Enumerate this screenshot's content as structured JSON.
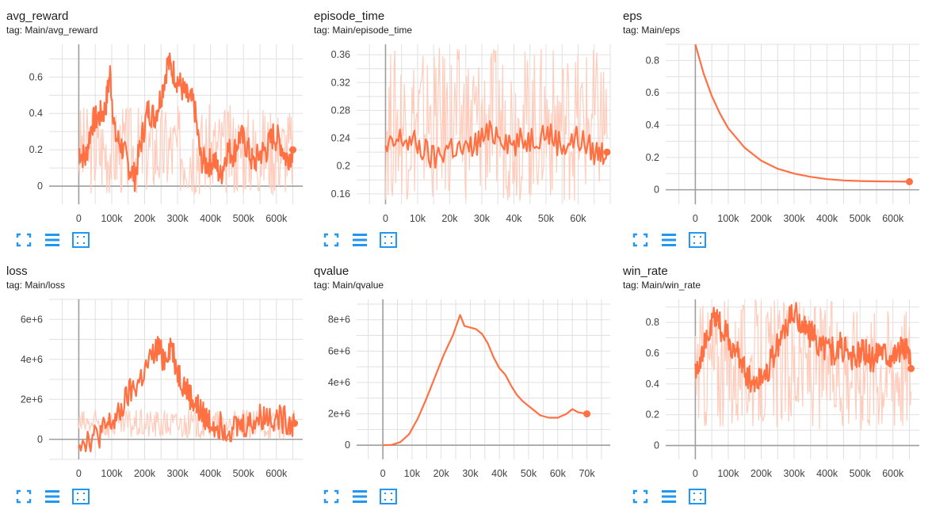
{
  "colors": {
    "series": "#ff7043",
    "series_light": "#ffccbc",
    "grid": "#e0e0e0",
    "axis": "#9e9e9e",
    "icon": "#2196f3"
  },
  "toolbar": {
    "icons": [
      "fit-to-data-icon",
      "toggle-log-scale-icon",
      "toggle-expand-icon"
    ]
  },
  "chart_data": [
    {
      "id": "avg_reward",
      "type": "line",
      "title": "avg_reward",
      "tag": "tag: Main/avg_reward",
      "xlim": [
        -90000,
        680000
      ],
      "ylim": [
        -0.1,
        0.78
      ],
      "xticks": [
        0,
        100000,
        200000,
        300000,
        400000,
        500000,
        600000
      ],
      "xticklabels": [
        "0",
        "100k",
        "200k",
        "300k",
        "400k",
        "500k",
        "600k"
      ],
      "yticks": [
        0,
        0.2,
        0.4,
        0.6
      ],
      "yticklabels": [
        "0",
        "0.2",
        "0.4",
        "0.6"
      ],
      "x": [
        0,
        20000,
        40000,
        60000,
        80000,
        95000,
        110000,
        130000,
        150000,
        170000,
        190000,
        210000,
        230000,
        250000,
        270000,
        290000,
        310000,
        330000,
        350000,
        370000,
        390000,
        410000,
        430000,
        450000,
        470000,
        490000,
        510000,
        530000,
        550000,
        570000,
        590000,
        610000,
        630000,
        650000
      ],
      "values": [
        0.2,
        0.15,
        0.35,
        0.38,
        0.42,
        0.62,
        0.28,
        0.22,
        0.12,
        0.05,
        0.25,
        0.42,
        0.38,
        0.5,
        0.68,
        0.62,
        0.55,
        0.48,
        0.45,
        0.15,
        0.12,
        0.15,
        0.05,
        0.2,
        0.18,
        0.28,
        0.22,
        0.12,
        0.18,
        0.2,
        0.28,
        0.25,
        0.15,
        0.2
      ],
      "raw_band": [
        -0.05,
        0.45
      ]
    },
    {
      "id": "episode_time",
      "type": "line",
      "title": "episode_time",
      "tag": "tag: Main/episode_time",
      "xlim": [
        -9000,
        70000
      ],
      "ylim": [
        0.145,
        0.375
      ],
      "xticks": [
        0,
        10000,
        20000,
        30000,
        40000,
        50000,
        60000
      ],
      "xticklabels": [
        "0",
        "10k",
        "20k",
        "30k",
        "40k",
        "50k",
        "60k"
      ],
      "yticks": [
        0.16,
        0.2,
        0.24,
        0.28,
        0.32,
        0.36
      ],
      "yticklabels": [
        "0.16",
        "0.2",
        "0.24",
        "0.28",
        "0.32",
        "0.36"
      ],
      "x": [
        0,
        5000,
        10000,
        15000,
        20000,
        25000,
        30000,
        35000,
        40000,
        45000,
        50000,
        55000,
        60000,
        65000,
        69000
      ],
      "values": [
        0.22,
        0.24,
        0.23,
        0.21,
        0.23,
        0.22,
        0.24,
        0.25,
        0.23,
        0.24,
        0.25,
        0.23,
        0.24,
        0.22,
        0.22
      ],
      "raw_band": [
        0.15,
        0.37
      ]
    },
    {
      "id": "eps",
      "type": "line",
      "title": "eps",
      "tag": "tag: Main/eps",
      "xlim": [
        -90000,
        680000
      ],
      "ylim": [
        -0.09,
        0.9
      ],
      "xticks": [
        0,
        100000,
        200000,
        300000,
        400000,
        500000,
        600000
      ],
      "xticklabels": [
        "0",
        "100k",
        "200k",
        "300k",
        "400k",
        "500k",
        "600k"
      ],
      "yticks": [
        0,
        0.2,
        0.4,
        0.6,
        0.8
      ],
      "yticklabels": [
        "0",
        "0.2",
        "0.4",
        "0.6",
        "0.8"
      ],
      "x": [
        0,
        25000,
        50000,
        75000,
        100000,
        150000,
        200000,
        250000,
        300000,
        350000,
        400000,
        450000,
        500000,
        550000,
        600000,
        650000
      ],
      "values": [
        0.9,
        0.72,
        0.58,
        0.47,
        0.38,
        0.26,
        0.18,
        0.13,
        0.1,
        0.08,
        0.066,
        0.058,
        0.054,
        0.052,
        0.051,
        0.05
      ]
    },
    {
      "id": "loss",
      "type": "line",
      "title": "loss",
      "tag": "tag: Main/loss",
      "xlim": [
        -90000,
        680000
      ],
      "ylim": [
        -1000000,
        7000000
      ],
      "xticks": [
        0,
        100000,
        200000,
        300000,
        400000,
        500000,
        600000
      ],
      "xticklabels": [
        "0",
        "100k",
        "200k",
        "300k",
        "400k",
        "500k",
        "600k"
      ],
      "yticks": [
        0,
        2000000,
        4000000,
        6000000
      ],
      "yticklabels": [
        "0",
        "2e+6",
        "4e+6",
        "6e+6"
      ],
      "x": [
        0,
        30000,
        60000,
        90000,
        120000,
        150000,
        180000,
        210000,
        240000,
        260000,
        280000,
        300000,
        320000,
        340000,
        360000,
        380000,
        400000,
        430000,
        460000,
        490000,
        520000,
        550000,
        580000,
        610000,
        640000,
        655000
      ],
      "values": [
        0,
        50000,
        200000,
        700000,
        1100000,
        2200000,
        2800000,
        3700000,
        4600000,
        4000000,
        4800000,
        3400000,
        2700000,
        2100000,
        1600000,
        1100000,
        900000,
        700000,
        600000,
        700000,
        800000,
        1100000,
        1200000,
        1000000,
        900000,
        800000
      ],
      "raw_band": [
        0,
        1500000
      ]
    },
    {
      "id": "qvalue",
      "type": "line",
      "title": "qvalue",
      "tag": "tag: Main/qvalue",
      "xlim": [
        -9000,
        78000
      ],
      "ylim": [
        -900000,
        9300000
      ],
      "xticks": [
        0,
        10000,
        20000,
        30000,
        40000,
        50000,
        60000,
        70000
      ],
      "xticklabels": [
        "0",
        "10k",
        "20k",
        "30k",
        "40k",
        "50k",
        "60k",
        "70k"
      ],
      "yticks": [
        0,
        2000000,
        4000000,
        6000000,
        8000000
      ],
      "yticklabels": [
        "0",
        "2e+6",
        "4e+6",
        "6e+6",
        "8e+6"
      ],
      "x": [
        0,
        3000,
        6000,
        9000,
        12000,
        15000,
        18000,
        21000,
        24000,
        26500,
        28000,
        30000,
        32000,
        34000,
        36000,
        38000,
        40000,
        42000,
        44000,
        46000,
        48000,
        50000,
        52000,
        54000,
        57000,
        60000,
        63000,
        65000,
        67000,
        70000
      ],
      "values": [
        0,
        20000,
        200000,
        700000,
        1700000,
        3000000,
        4400000,
        5800000,
        7000000,
        8300000,
        7600000,
        7500000,
        7400000,
        7100000,
        6500000,
        5600000,
        4900000,
        4500000,
        3800000,
        3200000,
        2800000,
        2500000,
        2200000,
        1900000,
        1750000,
        1750000,
        2000000,
        2300000,
        2100000,
        2000000
      ]
    },
    {
      "id": "win_rate",
      "type": "line",
      "title": "win_rate",
      "tag": "tag: Main/win_rate",
      "xlim": [
        -90000,
        680000
      ],
      "ylim": [
        -0.09,
        0.95
      ],
      "xticks": [
        0,
        100000,
        200000,
        300000,
        400000,
        500000,
        600000
      ],
      "xticklabels": [
        "0",
        "100k",
        "200k",
        "300k",
        "400k",
        "500k",
        "600k"
      ],
      "yticks": [
        0,
        0.2,
        0.4,
        0.6,
        0.8
      ],
      "yticklabels": [
        "0",
        "0.2",
        "0.4",
        "0.6",
        "0.8"
      ],
      "x": [
        0,
        20000,
        40000,
        60000,
        80000,
        100000,
        120000,
        140000,
        160000,
        180000,
        200000,
        220000,
        240000,
        260000,
        280000,
        300000,
        320000,
        340000,
        360000,
        380000,
        400000,
        420000,
        440000,
        460000,
        480000,
        500000,
        520000,
        540000,
        560000,
        580000,
        600000,
        620000,
        640000,
        655000
      ],
      "values": [
        0.5,
        0.6,
        0.7,
        0.85,
        0.75,
        0.7,
        0.6,
        0.55,
        0.45,
        0.4,
        0.45,
        0.5,
        0.6,
        0.7,
        0.8,
        0.85,
        0.8,
        0.75,
        0.7,
        0.65,
        0.65,
        0.6,
        0.65,
        0.6,
        0.55,
        0.6,
        0.6,
        0.55,
        0.65,
        0.6,
        0.6,
        0.62,
        0.65,
        0.5
      ],
      "raw_band": [
        0.1,
        0.95
      ]
    }
  ]
}
